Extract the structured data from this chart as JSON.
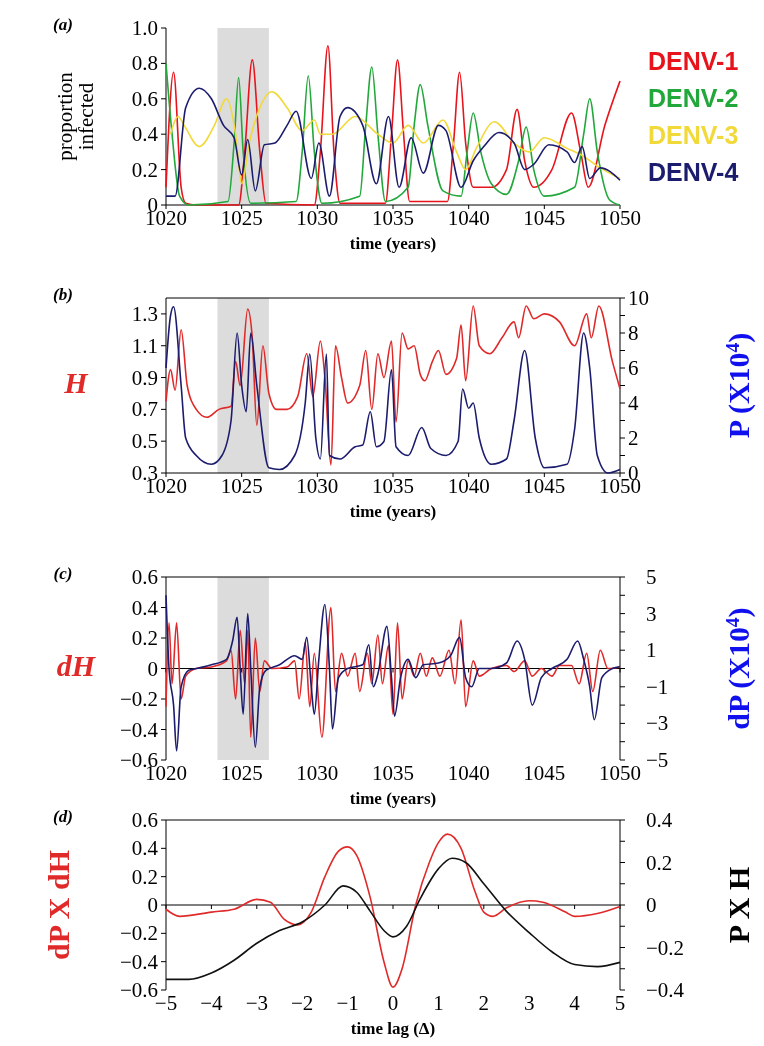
{
  "chart_data": [
    {
      "type": "line",
      "title": "(a)",
      "xlabel": "time (years)",
      "ylabel": "proportion infected",
      "xlim": [
        1020,
        1050
      ],
      "xticks": [
        1020,
        1025,
        1030,
        1035,
        1040,
        1045,
        1050
      ],
      "ylim": [
        0,
        1
      ],
      "yticks": [
        0,
        0.2,
        0.4,
        0.6,
        0.8,
        {
          "value": 1,
          "label": "1.0"
        }
      ],
      "legend": "right",
      "bands": [
        {
          "axis": "x",
          "from": 1023.4,
          "to": 1026.8,
          "color": "#dcdcdc"
        }
      ],
      "series": [
        {
          "name": "DENV-1",
          "color": "#e8141c",
          "x": [
            1020,
            1020.5,
            1021,
            1021.3,
            1022,
            1024.8,
            1025.2,
            1025.7,
            1026.2,
            1026.6,
            1029.8,
            1030.2,
            1030.7,
            1031.1,
            1031.5,
            1034.5,
            1034.9,
            1035.3,
            1035.7,
            1036.1,
            1038.6,
            1039,
            1039.4,
            1039.8,
            1040.3,
            1041.5,
            1042.5,
            1043.2,
            1043.7,
            1044.3,
            1045.5,
            1046.8,
            1047.4,
            1047.9,
            1049,
            1050
          ],
          "values": [
            0.1,
            0.75,
            0.1,
            0.01,
            0,
            0,
            0.3,
            0.82,
            0.3,
            0.01,
            0,
            0.3,
            0.9,
            0.3,
            0.01,
            0.01,
            0.4,
            0.82,
            0.4,
            0.02,
            0.02,
            0.35,
            0.75,
            0.35,
            0.1,
            0.1,
            0.2,
            0.54,
            0.25,
            0.1,
            0.2,
            0.52,
            0.3,
            0.1,
            0.45,
            0.7
          ]
        },
        {
          "name": "DENV-2",
          "color": "#22a83a",
          "x": [
            1020,
            1020.4,
            1020.9,
            1021.5,
            1024.1,
            1024.5,
            1024.8,
            1025.1,
            1025.6,
            1028.6,
            1029,
            1029.4,
            1029.8,
            1030.3,
            1032.8,
            1033.2,
            1033.6,
            1034,
            1034.5,
            1036,
            1036.4,
            1036.8,
            1037.3,
            1038.3,
            1039.5,
            1039.9,
            1040.3,
            1040.8,
            1041.5,
            1042.5,
            1043.3,
            1043.8,
            1044.3,
            1045,
            1047,
            1047.6,
            1048,
            1048.5,
            1049.3,
            1050
          ],
          "values": [
            0.8,
            0.4,
            0.05,
            0,
            0.02,
            0.35,
            0.72,
            0.3,
            0.01,
            0.02,
            0.3,
            0.73,
            0.3,
            0.01,
            0.05,
            0.45,
            0.78,
            0.4,
            0.02,
            0.1,
            0.45,
            0.68,
            0.45,
            0.08,
            0.05,
            0.3,
            0.52,
            0.3,
            0.12,
            0.06,
            0.25,
            0.44,
            0.2,
            0.05,
            0.1,
            0.4,
            0.6,
            0.3,
            0.03,
            0
          ]
        },
        {
          "name": "DENV-3",
          "color": "#f2d93a",
          "x": [
            1020.3,
            1020.8,
            1021.2,
            1022.2,
            1023.2,
            1024,
            1024.6,
            1025,
            1025.5,
            1026.2,
            1027,
            1028,
            1029,
            1029.8,
            1030.2,
            1031,
            1032.5,
            1034,
            1035,
            1036,
            1037,
            1038.3,
            1039.2,
            1039.8,
            1040.5,
            1041.7,
            1043,
            1044,
            1045,
            1046.5,
            1047.5,
            1048.5,
            1050
          ],
          "values": [
            0.4,
            0.5,
            0.45,
            0.33,
            0.45,
            0.6,
            0.4,
            0.12,
            0.35,
            0.55,
            0.64,
            0.55,
            0.42,
            0.48,
            0.4,
            0.4,
            0.5,
            0.4,
            0.35,
            0.45,
            0.35,
            0.48,
            0.3,
            0.2,
            0.32,
            0.47,
            0.35,
            0.3,
            0.38,
            0.32,
            0.28,
            0.22,
            0.15
          ]
        },
        {
          "name": "DENV-4",
          "color": "#1c1c6e",
          "x": [
            1020,
            1020.6,
            1021.3,
            1022.2,
            1023,
            1023.8,
            1024.5,
            1025,
            1025.4,
            1025.9,
            1026.5,
            1027.2,
            1028,
            1028.6,
            1029.6,
            1030.1,
            1030.8,
            1031.5,
            1032,
            1033,
            1033.9,
            1034.7,
            1035.4,
            1036.2,
            1037,
            1038,
            1038.5,
            1039.5,
            1040.3,
            1041,
            1042,
            1043,
            1043.7,
            1044.3,
            1045.3,
            1046.5,
            1047,
            1047.5,
            1048,
            1048.7,
            1050
          ],
          "values": [
            0.05,
            0.05,
            0.55,
            0.66,
            0.6,
            0.45,
            0.38,
            0.17,
            0.37,
            0.08,
            0.34,
            0.35,
            0.45,
            0.53,
            0.15,
            0.35,
            0.05,
            0.5,
            0.55,
            0.45,
            0.12,
            0.5,
            0.1,
            0.38,
            0.18,
            0.45,
            0.42,
            0.1,
            0.25,
            0.33,
            0.41,
            0.35,
            0.2,
            0.23,
            0.34,
            0.3,
            0.24,
            0.33,
            0.15,
            0.21,
            0.14
          ]
        }
      ]
    },
    {
      "type": "line",
      "title": "(b)",
      "xlabel": "time (years)",
      "ylabel": "H",
      "y2label": "P (X10$^{4}$)",
      "xlim": [
        1020,
        1050
      ],
      "xticks": [
        1020,
        1025,
        1030,
        1035,
        1040,
        1045,
        1050
      ],
      "ylim": [
        0.3,
        1.4
      ],
      "yticks": [
        0.3,
        0.5,
        0.7,
        0.9,
        1.1,
        1.3
      ],
      "y2lim": [
        0,
        10
      ],
      "y2ticks": [
        0,
        {
          "value": 1,
          "label": null
        },
        2,
        {
          "value": 3,
          "label": null
        },
        4,
        {
          "value": 5,
          "label": null
        },
        6,
        {
          "value": 7,
          "label": null
        },
        8,
        {
          "value": 9,
          "label": null
        },
        10
      ],
      "bands": [
        {
          "axis": "x",
          "from": 1023.4,
          "to": 1026.8,
          "color": "#dcdcdc"
        }
      ],
      "series": [
        {
          "color": "#e02a2a",
          "x": [
            1020,
            1020.3,
            1020.6,
            1021,
            1021.4,
            1022,
            1022.7,
            1023.5,
            1024.3,
            1024.6,
            1024.9,
            1025.4,
            1025.7,
            1026,
            1026.4,
            1026.8,
            1027.3,
            1028,
            1028.7,
            1029.3,
            1029.7,
            1030.2,
            1030.5,
            1030.9,
            1031.2,
            1031.6,
            1032,
            1032.8,
            1033.2,
            1033.6,
            1034,
            1034.4,
            1034.9,
            1035.2,
            1035.6,
            1036,
            1036.4,
            1036.8,
            1037.1,
            1037.6,
            1038,
            1038.5,
            1039.2,
            1039.5,
            1039.8,
            1040.3,
            1040.7,
            1041.4,
            1042.2,
            1043,
            1043.3,
            1043.8,
            1044.3,
            1045,
            1046,
            1047,
            1047.8,
            1048.1,
            1048.6,
            1049.5,
            1050
          ],
          "values": [
            0.75,
            0.95,
            0.82,
            1.2,
            0.85,
            0.7,
            0.65,
            0.7,
            0.72,
            1.0,
            0.85,
            1.33,
            1.15,
            0.6,
            1.1,
            0.8,
            0.7,
            0.7,
            0.78,
            1.05,
            0.78,
            1.13,
            0.9,
            0.35,
            1.1,
            0.9,
            0.74,
            0.85,
            1.07,
            0.7,
            1.05,
            0.9,
            1.13,
            0.62,
            1.18,
            1.08,
            1.1,
            0.92,
            0.88,
            1.0,
            1.07,
            0.92,
            1.02,
            1.23,
            0.88,
            1.35,
            1.1,
            1.05,
            1.15,
            1.25,
            1.15,
            1.35,
            1.27,
            1.3,
            1.25,
            1.1,
            1.3,
            1.15,
            1.35,
            1.0,
            0.83
          ]
        },
        {
          "color": "#1c1c6e",
          "axis": "y2",
          "x": [
            1020,
            1020.3,
            1020.5,
            1021,
            1021.3,
            1022,
            1023,
            1023.7,
            1024.3,
            1024.7,
            1025,
            1025.3,
            1025.6,
            1026,
            1026.8,
            1027.5,
            1028.5,
            1029.2,
            1029.5,
            1029.9,
            1030.2,
            1030.6,
            1030.8,
            1031.5,
            1032.5,
            1033,
            1033.5,
            1033.9,
            1034.4,
            1034.9,
            1035.2,
            1036,
            1036.9,
            1037.5,
            1038.5,
            1039.3,
            1039.6,
            1040,
            1040.3,
            1040.7,
            1041.5,
            1042.5,
            1043,
            1043.7,
            1044.4,
            1045,
            1046.5,
            1047,
            1047.6,
            1048,
            1048.5,
            1049.2,
            1050
          ],
          "values": [
            6,
            9,
            9.5,
            5,
            2,
            1,
            0.5,
            1,
            3,
            8,
            5,
            3.5,
            8,
            5,
            0.3,
            0.2,
            1,
            4,
            6.8,
            2,
            0.8,
            6.8,
            1,
            0.8,
            1.5,
            1.6,
            3.5,
            1.5,
            1.8,
            5.9,
            1.5,
            1,
            2.6,
            1.4,
            1,
            1.8,
            4.8,
            3.7,
            4,
            2,
            0.5,
            0.8,
            3,
            7,
            2,
            0.3,
            0.5,
            2.5,
            8,
            6,
            1,
            0,
            0.2
          ]
        }
      ]
    },
    {
      "type": "line",
      "title": "(c)",
      "xlabel": "time (years)",
      "ylabel": "dH",
      "y2label": "dP (X10$^{4}$)",
      "xlim": [
        1020,
        1050
      ],
      "xticks": [
        1020,
        1025,
        1030,
        1035,
        1040,
        1045,
        1050
      ],
      "ylim": [
        -0.6,
        0.6
      ],
      "yticks": [
        {
          "value": -0.6,
          "label": "−0.6"
        },
        {
          "value": -0.4,
          "label": "−0.4"
        },
        {
          "value": -0.2,
          "label": "−0.2"
        },
        0,
        0.2,
        0.4,
        0.6
      ],
      "y2lim": [
        -5,
        5
      ],
      "y2ticks": [
        {
          "value": -5,
          "label": "−5"
        },
        {
          "value": -4,
          "label": null
        },
        {
          "value": -3,
          "label": "−3"
        },
        {
          "value": -2,
          "label": null
        },
        {
          "value": -1,
          "label": "−1"
        },
        {
          "value": 0,
          "label": null
        },
        1,
        {
          "value": 2,
          "label": null
        },
        3,
        {
          "value": 4,
          "label": null
        },
        5
      ],
      "bands": [
        {
          "axis": "x",
          "from": 1023.4,
          "to": 1026.8,
          "color": "#dcdcdc"
        }
      ],
      "series": [
        {
          "color": "#e02a2a",
          "x": [
            1020,
            1020.2,
            1020.4,
            1020.7,
            1021,
            1021.3,
            1022,
            1023,
            1024,
            1024.3,
            1024.6,
            1024.9,
            1025.2,
            1025.4,
            1025.6,
            1025.9,
            1026.2,
            1026.5,
            1027,
            1028,
            1028.5,
            1028.8,
            1029.2,
            1029.5,
            1029.8,
            1030.3,
            1030.9,
            1031.2,
            1031.6,
            1032,
            1032.5,
            1032.8,
            1033.3,
            1033.6,
            1034,
            1034.3,
            1034.7,
            1035,
            1035.3,
            1035.6,
            1036,
            1036.4,
            1036.8,
            1037.2,
            1037.6,
            1038.1,
            1038.7,
            1039.1,
            1039.5,
            1039.8,
            1040.3,
            1040.7,
            1041.5,
            1042.5,
            1043,
            1043.7,
            1044.2,
            1044.8,
            1045.5,
            1046,
            1046.8,
            1047.3,
            1047.8,
            1048.2,
            1048.7,
            1049.2,
            1050
          ],
          "values": [
            -0.25,
            0.3,
            -0.1,
            0.3,
            -0.2,
            -0.05,
            0,
            0.01,
            0.05,
            0.12,
            -0.2,
            0.25,
            -0.1,
            0.25,
            -0.45,
            0.2,
            -0.15,
            0.05,
            0,
            0.01,
            0.05,
            -0.2,
            0.17,
            -0.25,
            0.1,
            -0.45,
            0.4,
            -0.15,
            0.1,
            -0.05,
            0.1,
            -0.15,
            0.1,
            -0.1,
            0.22,
            -0.1,
            0.15,
            -0.3,
            0.3,
            -0.2,
            0.05,
            -0.05,
            0.1,
            -0.05,
            0.07,
            -0.05,
            0.12,
            -0.1,
            0.32,
            -0.25,
            0.05,
            -0.05,
            0,
            0.02,
            -0.02,
            0.05,
            -0.05,
            0,
            -0.05,
            0.02,
            0.02,
            -0.1,
            0.1,
            -0.15,
            0.12,
            0,
            0.01
          ]
        },
        {
          "color": "#1c1c6e",
          "axis": "y2",
          "x": [
            1020,
            1020.2,
            1020.5,
            1020.7,
            1021,
            1021.5,
            1022,
            1023,
            1024,
            1024.4,
            1024.7,
            1024.9,
            1025.1,
            1025.4,
            1025.6,
            1025.9,
            1026.2,
            1026.6,
            1027.5,
            1028.5,
            1029,
            1029.3,
            1029.6,
            1029.8,
            1030.1,
            1030.5,
            1030.8,
            1031,
            1031.4,
            1032,
            1033,
            1033.4,
            1033.7,
            1034,
            1034.6,
            1034.9,
            1035.1,
            1035.5,
            1036,
            1036.5,
            1037,
            1038,
            1038.8,
            1039.4,
            1039.8,
            1040.2,
            1040.7,
            1041.5,
            1042.5,
            1043.2,
            1043.7,
            1044.2,
            1044.8,
            1045.5,
            1046.5,
            1047.2,
            1047.6,
            1048,
            1048.3,
            1048.8,
            1049.5,
            1050
          ],
          "values": [
            4,
            0,
            -2,
            -4.5,
            -1,
            -0.1,
            0,
            0.2,
            0.5,
            1.5,
            2.8,
            0,
            -2.5,
            3,
            0,
            -4.3,
            -1,
            -0.1,
            0.2,
            0.7,
            0.5,
            1.7,
            -1,
            -2.5,
            0.5,
            3.5,
            0,
            -3.3,
            -0.5,
            0,
            0.2,
            1.3,
            -1,
            -0.3,
            2.3,
            -0.5,
            -2.6,
            -0.5,
            0.5,
            -0.5,
            0.2,
            0.3,
            0.7,
            1.7,
            -0.5,
            -1,
            0,
            0,
            0.3,
            1.5,
            0.5,
            -2,
            -0.5,
            0,
            0.5,
            1.5,
            0.5,
            -1,
            -2.8,
            -0.5,
            0,
            0.1
          ]
        }
      ]
    },
    {
      "type": "line",
      "title": "(d)",
      "xlabel": "time lag (Δ)",
      "ylabel": "dP X dH",
      "y2label": "P X H",
      "xlim": [
        -5,
        5
      ],
      "xticks": [
        {
          "value": -5,
          "label": "−5"
        },
        {
          "value": -4,
          "label": "−4"
        },
        {
          "value": -3,
          "label": "−3"
        },
        {
          "value": -2,
          "label": "−2"
        },
        {
          "value": -1,
          "label": "−1"
        },
        0,
        1,
        2,
        3,
        4,
        5
      ],
      "ylim": [
        -0.6,
        0.6
      ],
      "yticks": [
        {
          "value": -0.6,
          "label": "−0.6"
        },
        {
          "value": -0.4,
          "label": "−0.4"
        },
        {
          "value": -0.2,
          "label": "−0.2"
        },
        0,
        0.2,
        0.4,
        0.6
      ],
      "y2lim": [
        -0.4,
        0.4
      ],
      "y2ticks": [
        {
          "value": -0.4,
          "label": "−0.4"
        },
        {
          "value": -0.3,
          "label": null
        },
        {
          "value": -0.2,
          "label": "−0.2"
        },
        {
          "value": -0.1,
          "label": null
        },
        0,
        {
          "value": 0.1,
          "label": null
        },
        0.2,
        {
          "value": 0.3,
          "label": null
        },
        0.4
      ],
      "series": [
        {
          "color": "#e02a2a",
          "x": [
            -5,
            -4.7,
            -4,
            -3.5,
            -3,
            -2.7,
            -2.4,
            -2.1,
            -1.8,
            -1.5,
            -1.2,
            -1,
            -0.8,
            -0.5,
            -0.2,
            0,
            0.2,
            0.5,
            0.8,
            1,
            1.2,
            1.5,
            1.8,
            2,
            2.2,
            2.5,
            3,
            3.3,
            3.8,
            4,
            4.5,
            5
          ],
          "values": [
            -0.03,
            -0.08,
            -0.05,
            -0.03,
            0.04,
            0.02,
            -0.1,
            -0.14,
            -0.05,
            0.2,
            0.38,
            0.41,
            0.35,
            0.05,
            -0.4,
            -0.58,
            -0.45,
            0,
            0.3,
            0.44,
            0.5,
            0.4,
            0.1,
            -0.05,
            -0.08,
            -0.02,
            0.03,
            0.02,
            -0.05,
            -0.08,
            -0.06,
            -0.01
          ]
        },
        {
          "color": "#111111",
          "axis": "y2",
          "x": [
            -5,
            -4.5,
            -4,
            -3.5,
            -3,
            -2.5,
            -2,
            -1.5,
            -1.1,
            -0.8,
            -0.5,
            -0.2,
            0,
            0.3,
            0.6,
            1,
            1.3,
            1.6,
            2,
            2.5,
            3,
            3.5,
            4,
            4.5,
            5
          ],
          "values": [
            -0.35,
            -0.35,
            -0.32,
            -0.26,
            -0.18,
            -0.12,
            -0.08,
            0,
            0.09,
            0.06,
            -0.03,
            -0.12,
            -0.15,
            -0.1,
            0.03,
            0.17,
            0.22,
            0.2,
            0.1,
            -0.03,
            -0.13,
            -0.22,
            -0.28,
            -0.29,
            -0.27
          ]
        }
      ]
    }
  ]
}
